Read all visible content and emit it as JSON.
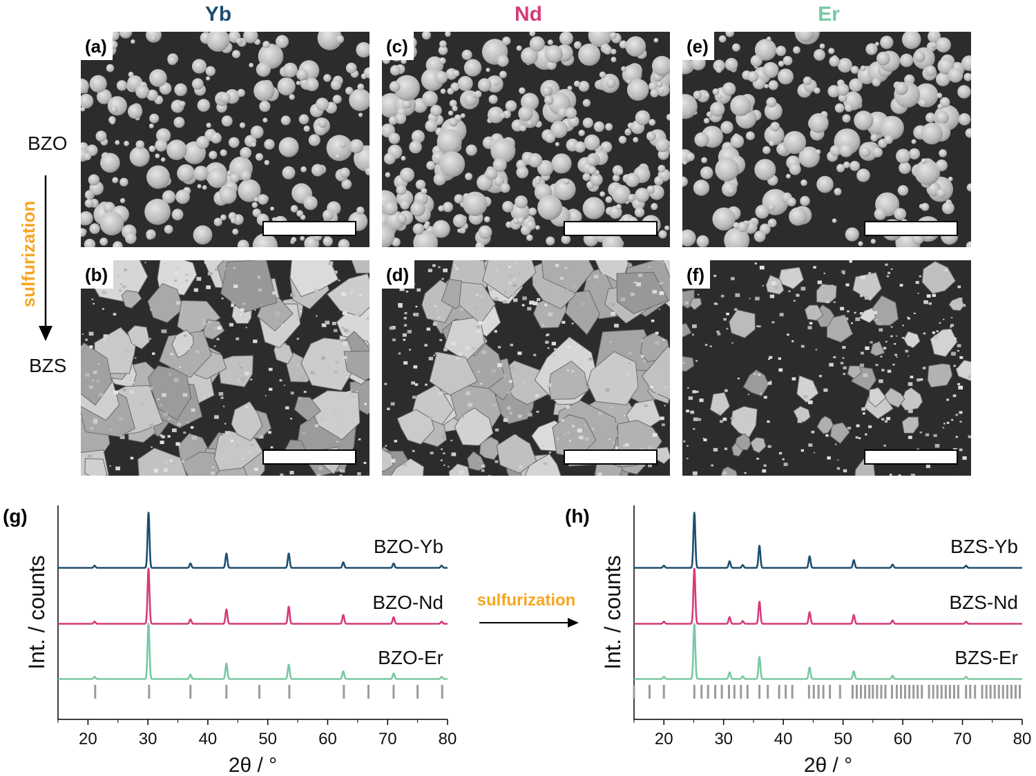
{
  "columns": [
    {
      "label": "Yb",
      "color": "#1d4e6e"
    },
    {
      "label": "Nd",
      "color": "#d63a79"
    },
    {
      "label": "Er",
      "color": "#78c8a3"
    }
  ],
  "rows": {
    "top": "BZO",
    "bottom": "BZS"
  },
  "arrow_label": "sulfurization",
  "arrow_color": "#f5a623",
  "sem_panels": [
    {
      "tag": "(a)",
      "morphology": "rounded particles"
    },
    {
      "tag": "(b)",
      "morphology": "faceted agglomerates"
    },
    {
      "tag": "(c)",
      "morphology": "rounded particles"
    },
    {
      "tag": "(d)",
      "morphology": "faceted agglomerates"
    },
    {
      "tag": "(e)",
      "morphology": "rounded particles"
    },
    {
      "tag": "(f)",
      "morphology": "faceted agglomerates"
    }
  ],
  "chart_data": [
    {
      "panel": "(g)",
      "type": "line",
      "xlabel": "2θ / °",
      "ylabel": "Int. / counts",
      "xlim": [
        15,
        80
      ],
      "xticks": [
        20,
        30,
        40,
        50,
        60,
        70,
        80
      ],
      "series": [
        {
          "name": "BZO-Yb",
          "color": "#1d4e6e",
          "peaks": [
            [
              21.1,
              0.04
            ],
            [
              30.1,
              1.0
            ],
            [
              37.1,
              0.08
            ],
            [
              43.1,
              0.26
            ],
            [
              53.5,
              0.26
            ],
            [
              62.6,
              0.1
            ],
            [
              71.0,
              0.08
            ],
            [
              79.0,
              0.04
            ]
          ]
        },
        {
          "name": "BZO-Nd",
          "color": "#d63a79",
          "peaks": [
            [
              21.1,
              0.04
            ],
            [
              30.1,
              1.0
            ],
            [
              37.1,
              0.08
            ],
            [
              43.1,
              0.26
            ],
            [
              53.5,
              0.31
            ],
            [
              62.6,
              0.16
            ],
            [
              71.0,
              0.12
            ],
            [
              79.0,
              0.04
            ]
          ]
        },
        {
          "name": "BZO-Er",
          "color": "#78c8a3",
          "peaks": [
            [
              21.1,
              0.04
            ],
            [
              30.1,
              1.0
            ],
            [
              37.1,
              0.08
            ],
            [
              43.1,
              0.28
            ],
            [
              53.5,
              0.26
            ],
            [
              62.6,
              0.14
            ],
            [
              71.0,
              0.1
            ],
            [
              79.0,
              0.04
            ]
          ]
        }
      ],
      "reference_ticks": [
        21.2,
        30.2,
        37.1,
        43.1,
        48.6,
        53.6,
        62.7,
        66.8,
        71.0,
        75.0,
        79.1
      ]
    },
    {
      "panel": "(h)",
      "type": "line",
      "xlabel": "2θ / °",
      "ylabel": "Int. / counts",
      "xlim": [
        15,
        80
      ],
      "xticks": [
        20,
        30,
        40,
        50,
        60,
        70,
        80
      ],
      "series": [
        {
          "name": "BZS-Yb",
          "color": "#1d4e6e",
          "peaks": [
            [
              20.0,
              0.04
            ],
            [
              25.1,
              1.0
            ],
            [
              31.0,
              0.12
            ],
            [
              33.2,
              0.05
            ],
            [
              36.0,
              0.4
            ],
            [
              44.4,
              0.21
            ],
            [
              51.8,
              0.14
            ],
            [
              58.3,
              0.06
            ],
            [
              70.6,
              0.04
            ]
          ]
        },
        {
          "name": "BZS-Nd",
          "color": "#d63a79",
          "peaks": [
            [
              20.0,
              0.04
            ],
            [
              25.1,
              1.0
            ],
            [
              31.0,
              0.12
            ],
            [
              33.2,
              0.05
            ],
            [
              36.0,
              0.4
            ],
            [
              44.4,
              0.21
            ],
            [
              51.8,
              0.16
            ],
            [
              58.3,
              0.06
            ],
            [
              70.6,
              0.04
            ]
          ]
        },
        {
          "name": "BZS-Er",
          "color": "#78c8a3",
          "peaks": [
            [
              20.0,
              0.04
            ],
            [
              25.1,
              1.0
            ],
            [
              31.0,
              0.12
            ],
            [
              33.2,
              0.05
            ],
            [
              36.0,
              0.4
            ],
            [
              44.4,
              0.21
            ],
            [
              51.8,
              0.14
            ],
            [
              58.3,
              0.06
            ],
            [
              70.6,
              0.04
            ]
          ]
        }
      ],
      "reference_ticks": [
        15.0,
        17.6,
        20.0,
        25.1,
        26.3,
        27.4,
        28.6,
        29.7,
        30.9,
        31.8,
        32.9,
        34.0,
        36.0,
        37.4,
        39.3,
        40.4,
        41.5,
        44.3,
        45.1,
        45.9,
        46.7,
        47.8,
        49.5,
        51.6,
        52.3,
        53.0,
        53.7,
        54.4,
        55.0,
        55.7,
        56.4,
        57.1,
        58.2,
        59.0,
        59.7,
        60.4,
        61.1,
        61.8,
        62.5,
        63.2,
        64.4,
        65.1,
        65.8,
        66.5,
        67.2,
        67.9,
        68.6,
        69.3,
        70.6,
        71.3,
        72.1,
        73.3,
        74.0,
        74.7,
        75.4,
        76.1,
        76.8,
        77.5,
        78.2,
        78.9,
        79.6
      ]
    }
  ],
  "sulfurization_arrow_label": "sulfurization"
}
